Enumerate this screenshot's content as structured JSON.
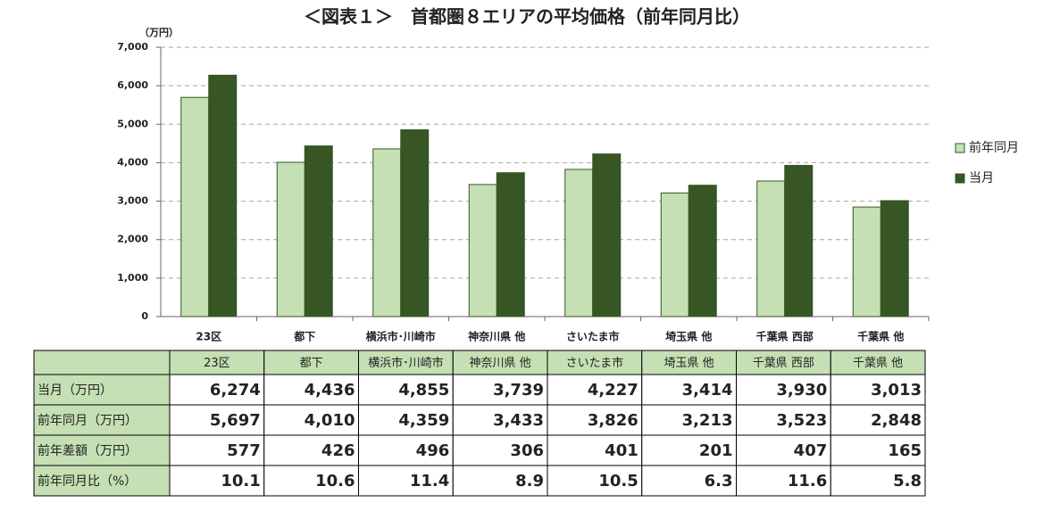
{
  "chart_data": {
    "type": "bar",
    "title": "＜図表１＞　首都圏８エリアの平均価格（前年同月比）",
    "ylabel": "（万円）",
    "categories": [
      "23区",
      "都下",
      "横浜市･川崎市",
      "神奈川県 他",
      "さいたま市",
      "埼玉県 他",
      "千葉県 西部",
      "千葉県 他"
    ],
    "series": [
      {
        "name": "前年同月",
        "color": "#c5e0b4",
        "values": [
          5697,
          4010,
          4359,
          3433,
          3826,
          3213,
          3523,
          2848
        ],
        "value_labels": [
          "5,697",
          "4,010",
          "4,359",
          "3,433",
          "3,826",
          "3,213",
          "3,523",
          "2,848"
        ]
      },
      {
        "name": "当月",
        "color": "#375623",
        "values": [
          6274,
          4436,
          4855,
          3739,
          4227,
          3414,
          3930,
          3013
        ],
        "value_labels": [
          "6,274",
          "4,436",
          "4,855",
          "3,739",
          "4,227",
          "3,414",
          "3,930",
          "3,013"
        ]
      }
    ],
    "ylim": [
      0,
      7000
    ],
    "yticks": [
      0,
      {
        "value": 1000,
        "label": "1,000"
      },
      {
        "value": 2000,
        "label": "2,000"
      },
      {
        "value": 3000,
        "label": "3,000"
      },
      {
        "value": 4000,
        "label": "4,000"
      },
      {
        "value": 5000,
        "label": "5,000"
      },
      {
        "value": 6000,
        "label": "6,000"
      },
      {
        "value": 7000,
        "label": "7,000"
      }
    ],
    "grid": true,
    "legend": "right"
  },
  "table": {
    "rows": [
      {
        "label": "当月（万円）"
      },
      {
        "label": "前年同月（万円）"
      },
      {
        "label": "前年差額（万円）",
        "values": [
          577,
          426,
          496,
          306,
          401,
          201,
          407,
          165
        ]
      },
      {
        "label": "前年同月比（%）",
        "values": [
          10.1,
          10.6,
          11.4,
          8.9,
          10.5,
          6.3,
          11.6,
          5.8
        ]
      }
    ]
  }
}
